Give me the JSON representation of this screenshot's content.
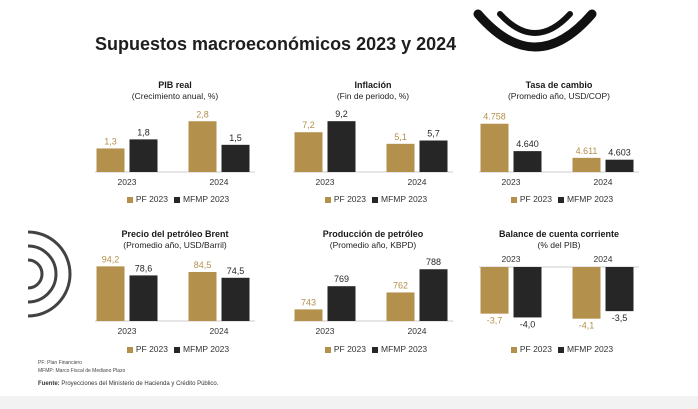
{
  "title": "Supuestos macroeconómicos 2023 y 2024",
  "colors": {
    "pf": "#b3904c",
    "mfmp": "#262626"
  },
  "chart_data": [
    {
      "type": "bar",
      "title": "PIB real",
      "subtitle": "(Crecimiento anual, %)",
      "categories": [
        "2023",
        "2024"
      ],
      "series": [
        {
          "name": "PF 2023",
          "values": [
            1.3,
            2.8
          ],
          "labels": [
            "1,3",
            "2,8"
          ]
        },
        {
          "name": "MFMP 2023",
          "values": [
            1.8,
            1.5
          ],
          "labels": [
            "1,8",
            "1,5"
          ]
        }
      ],
      "ylim": [
        0,
        3.2
      ]
    },
    {
      "type": "bar",
      "title": "Inflación",
      "subtitle": "(Fin de periodo, %)",
      "categories": [
        "2023",
        "2024"
      ],
      "series": [
        {
          "name": "PF 2023",
          "values": [
            7.2,
            5.1
          ],
          "labels": [
            "7,2",
            "5,1"
          ]
        },
        {
          "name": "MFMP 2023",
          "values": [
            9.2,
            5.7
          ],
          "labels": [
            "9,2",
            "5,7"
          ]
        }
      ],
      "ylim": [
        0,
        10.5
      ]
    },
    {
      "type": "bar",
      "title": "Tasa de cambio",
      "subtitle": "(Promedio año, USD/COP)",
      "categories": [
        "2023",
        "2024"
      ],
      "series": [
        {
          "name": "PF 2023",
          "values": [
            4758,
            4611
          ],
          "labels": [
            "4.758",
            "4.611"
          ]
        },
        {
          "name": "MFMP 2023",
          "values": [
            4640,
            4603
          ],
          "labels": [
            "4.640",
            "4.603"
          ]
        }
      ],
      "ylim": [
        4550,
        4800
      ]
    },
    {
      "type": "bar",
      "title": "Precio del petróleo Brent",
      "subtitle": "(Promedio año, USD/Barril)",
      "categories": [
        "2023",
        "2024"
      ],
      "series": [
        {
          "name": "PF 2023",
          "values": [
            94.2,
            84.5
          ],
          "labels": [
            "94,2",
            "84,5"
          ]
        },
        {
          "name": "MFMP 2023",
          "values": [
            78.6,
            74.5
          ],
          "labels": [
            "78,6",
            "74,5"
          ]
        }
      ],
      "ylim": [
        0,
        100
      ]
    },
    {
      "type": "bar",
      "title": "Producción de petróleo",
      "subtitle": "(Promedio año, KBPD)",
      "categories": [
        "2023",
        "2024"
      ],
      "series": [
        {
          "name": "PF 2023",
          "values": [
            743,
            762
          ],
          "labels": [
            "743",
            "762"
          ]
        },
        {
          "name": "MFMP 2023",
          "values": [
            769,
            788
          ],
          "labels": [
            "769",
            "788"
          ]
        }
      ],
      "ylim": [
        730,
        795
      ]
    },
    {
      "type": "bar",
      "title": "Balance de cuenta corriente",
      "subtitle": "(% del PIB)",
      "categories": [
        "2023",
        "2024"
      ],
      "series": [
        {
          "name": "PF 2023",
          "values": [
            -3.7,
            -4.1
          ],
          "labels": [
            "-3,7",
            "-4,1"
          ]
        },
        {
          "name": "MFMP 2023",
          "values": [
            -4.0,
            -3.5
          ],
          "labels": [
            "-4,0",
            "-3,5"
          ]
        }
      ],
      "ylim": [
        -4.6,
        0
      ]
    }
  ],
  "footnotes": [
    "PF: Plan Financiero",
    "MFMP: Marco Fiscal de Mediano Plazo"
  ],
  "source": {
    "label": "Fuente:",
    "text": "Proyecciones del Ministerio de Hacienda y Crédito Público."
  }
}
